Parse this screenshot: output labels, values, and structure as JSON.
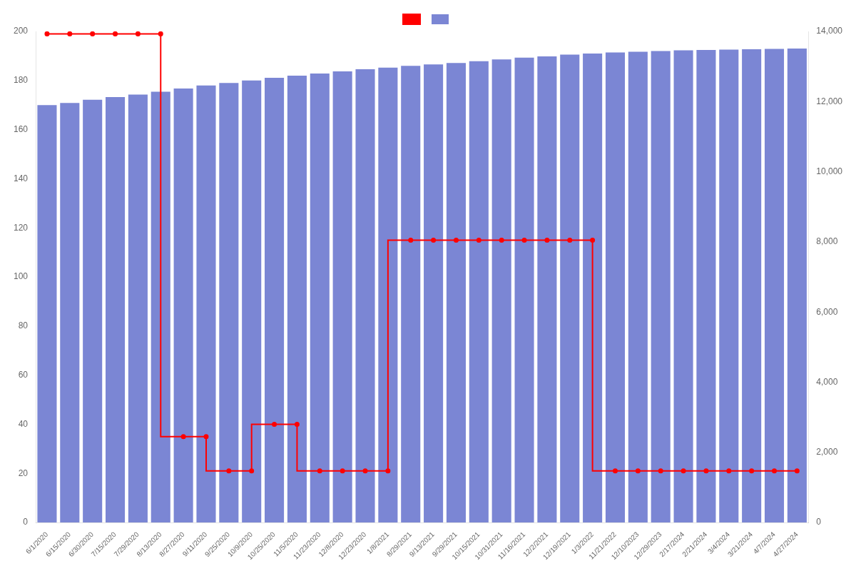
{
  "chart_data": {
    "type": "bar",
    "categories": [
      "6/1/2020",
      "6/15/2020",
      "6/30/2020",
      "7/15/2020",
      "7/29/2020",
      "8/13/2020",
      "8/27/2020",
      "9/11/2020",
      "9/25/2020",
      "10/9/2020",
      "10/25/2020",
      "11/5/2020",
      "11/23/2020",
      "12/8/2020",
      "12/23/2020",
      "1/8/2021",
      "8/29/2021",
      "9/13/2021",
      "9/29/2021",
      "10/15/2021",
      "10/31/2021",
      "11/16/2021",
      "12/2/2021",
      "12/19/2021",
      "1/3/2022",
      "11/21/2022",
      "12/10/2023",
      "12/29/2023",
      "2/17/2024",
      "2/21/2024",
      "3/4/2024",
      "3/21/2024",
      "4/7/2024",
      "4/27/2024"
    ],
    "series": [
      {
        "type": "step",
        "color": "#ff0000",
        "marker": "circle",
        "values": [
          199,
          199,
          199,
          199,
          199,
          199,
          35,
          35,
          21,
          21,
          40,
          40,
          21,
          21,
          21,
          21,
          115,
          115,
          115,
          115,
          115,
          115,
          115,
          115,
          115,
          21,
          21,
          21,
          21,
          21,
          21,
          21,
          21,
          21
        ]
      },
      {
        "type": "bar",
        "color": "#7b86d4",
        "axis": "y2",
        "values": [
          11900,
          11960,
          12050,
          12130,
          12200,
          12280,
          12370,
          12460,
          12530,
          12600,
          12680,
          12740,
          12800,
          12860,
          12920,
          12970,
          13020,
          13060,
          13100,
          13150,
          13200,
          13250,
          13290,
          13340,
          13370,
          13400,
          13420,
          13440,
          13460,
          13470,
          13480,
          13490,
          13500,
          13510
        ]
      }
    ],
    "ylim": [
      0,
      200
    ],
    "yticks": [
      0,
      20,
      40,
      60,
      80,
      100,
      120,
      140,
      160,
      180,
      200
    ],
    "y2lim": [
      0,
      14000
    ],
    "y2ticks": [
      0,
      {
        "value": 2000,
        "label": "2,000"
      },
      {
        "value": 4000,
        "label": "4,000"
      },
      {
        "value": 6000,
        "label": "6,000"
      },
      {
        "value": 8000,
        "label": "8,000"
      },
      {
        "value": 10000,
        "label": "10,000"
      },
      {
        "value": 12000,
        "label": "12,000"
      },
      {
        "value": 14000,
        "label": "14,000"
      }
    ],
    "grid": false,
    "legend": "top"
  }
}
